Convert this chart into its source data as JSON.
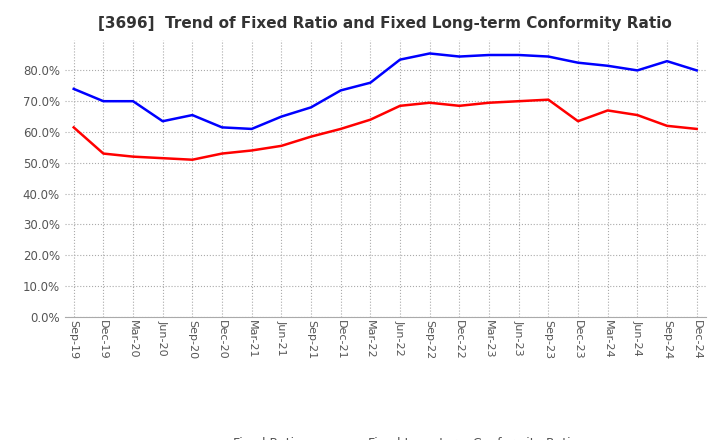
{
  "title": "[3696]  Trend of Fixed Ratio and Fixed Long-term Conformity Ratio",
  "x_labels": [
    "Sep-19",
    "Dec-19",
    "Mar-20",
    "Jun-20",
    "Sep-20",
    "Dec-20",
    "Mar-21",
    "Jun-21",
    "Sep-21",
    "Dec-21",
    "Mar-22",
    "Jun-22",
    "Sep-22",
    "Dec-22",
    "Mar-23",
    "Jun-23",
    "Sep-23",
    "Dec-23",
    "Mar-24",
    "Jun-24",
    "Sep-24",
    "Dec-24"
  ],
  "fixed_ratio": [
    74.0,
    70.0,
    70.0,
    63.5,
    65.5,
    61.5,
    61.0,
    65.0,
    68.0,
    73.5,
    76.0,
    83.5,
    85.5,
    84.5,
    85.0,
    85.0,
    84.5,
    82.5,
    81.5,
    80.0,
    83.0,
    80.0
  ],
  "fixed_lt_ratio": [
    61.5,
    53.0,
    52.0,
    51.5,
    51.0,
    53.0,
    54.0,
    55.5,
    58.5,
    61.0,
    64.0,
    68.5,
    69.5,
    68.5,
    69.5,
    70.0,
    70.5,
    63.5,
    67.0,
    65.5,
    62.0,
    61.0
  ],
  "fixed_ratio_color": "#0000ff",
  "fixed_lt_ratio_color": "#ff0000",
  "ylim_max": 90,
  "yticks": [
    0,
    10,
    20,
    30,
    40,
    50,
    60,
    70,
    80
  ],
  "background_color": "#ffffff",
  "grid_color": "#aaaaaa",
  "legend_fixed": "Fixed Ratio",
  "legend_fixed_lt": "Fixed Long-term Conformity Ratio"
}
